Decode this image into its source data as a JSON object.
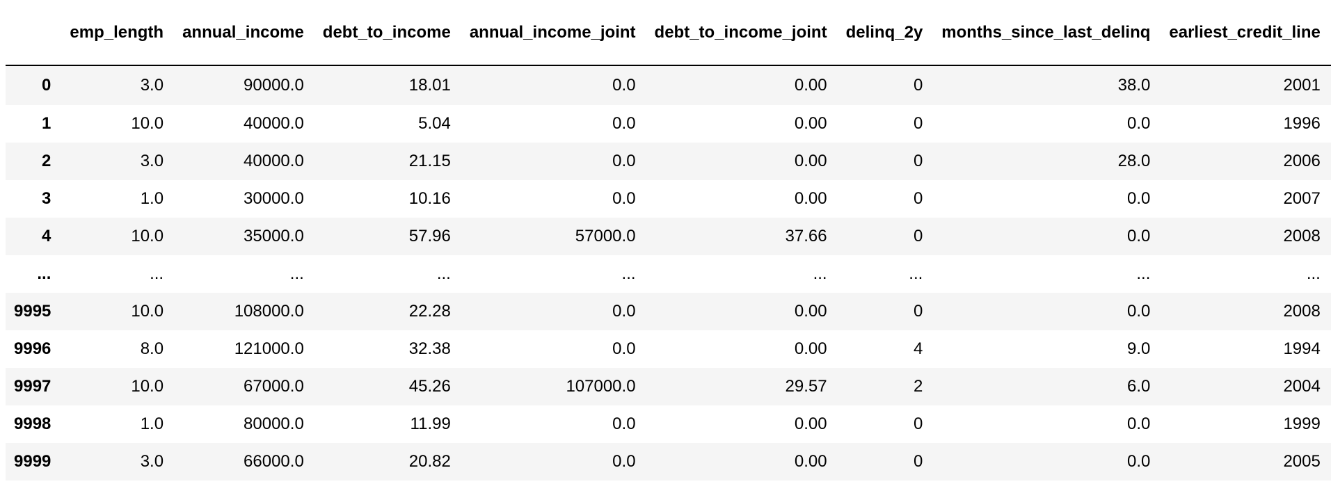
{
  "dataframe": {
    "columns": [
      "emp_length",
      "annual_income",
      "debt_to_income",
      "annual_income_joint",
      "debt_to_income_joint",
      "delinq_2y",
      "months_since_last_delinq",
      "earliest_credit_line"
    ],
    "rows": [
      {
        "index": "0",
        "cells": [
          "3.0",
          "90000.0",
          "18.01",
          "0.0",
          "0.00",
          "0",
          "38.0",
          "2001"
        ]
      },
      {
        "index": "1",
        "cells": [
          "10.0",
          "40000.0",
          "5.04",
          "0.0",
          "0.00",
          "0",
          "0.0",
          "1996"
        ]
      },
      {
        "index": "2",
        "cells": [
          "3.0",
          "40000.0",
          "21.15",
          "0.0",
          "0.00",
          "0",
          "28.0",
          "2006"
        ]
      },
      {
        "index": "3",
        "cells": [
          "1.0",
          "30000.0",
          "10.16",
          "0.0",
          "0.00",
          "0",
          "0.0",
          "2007"
        ]
      },
      {
        "index": "4",
        "cells": [
          "10.0",
          "35000.0",
          "57.96",
          "57000.0",
          "37.66",
          "0",
          "0.0",
          "2008"
        ]
      },
      {
        "index": "...",
        "cells": [
          "...",
          "...",
          "...",
          "...",
          "...",
          "...",
          "...",
          "..."
        ]
      },
      {
        "index": "9995",
        "cells": [
          "10.0",
          "108000.0",
          "22.28",
          "0.0",
          "0.00",
          "0",
          "0.0",
          "2008"
        ]
      },
      {
        "index": "9996",
        "cells": [
          "8.0",
          "121000.0",
          "32.38",
          "0.0",
          "0.00",
          "4",
          "9.0",
          "1994"
        ]
      },
      {
        "index": "9997",
        "cells": [
          "10.0",
          "67000.0",
          "45.26",
          "107000.0",
          "29.57",
          "2",
          "6.0",
          "2004"
        ]
      },
      {
        "index": "9998",
        "cells": [
          "1.0",
          "80000.0",
          "11.99",
          "0.0",
          "0.00",
          "0",
          "0.0",
          "1999"
        ]
      },
      {
        "index": "9999",
        "cells": [
          "3.0",
          "66000.0",
          "20.82",
          "0.0",
          "0.00",
          "0",
          "0.0",
          "2005"
        ]
      }
    ]
  }
}
